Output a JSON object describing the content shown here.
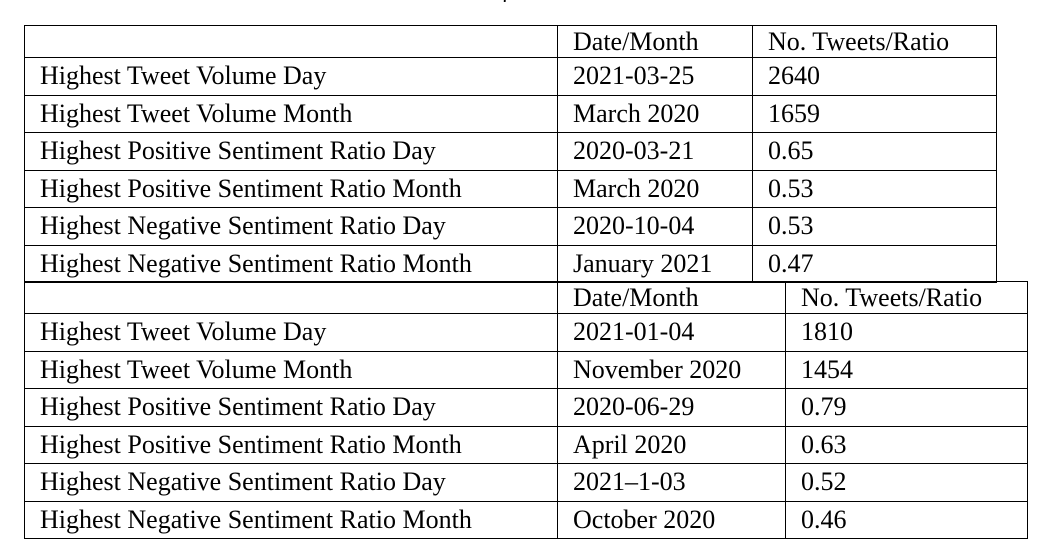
{
  "caption_fragment": ")",
  "tables": [
    {
      "headers": [
        "",
        "Date/Month",
        "No. Tweets/Ratio"
      ],
      "rows": [
        [
          "Highest Tweet Volume Day",
          "2021-03-25",
          "2640"
        ],
        [
          "Highest Tweet Volume Month",
          "March 2020",
          "1659"
        ],
        [
          "Highest Positive Sentiment Ratio Day",
          "2020-03-21",
          "0.65"
        ],
        [
          "Highest Positive Sentiment Ratio Month",
          "March 2020",
          "0.53"
        ],
        [
          "Highest Negative Sentiment Ratio Day",
          "2020-10-04",
          "0.53"
        ],
        [
          "Highest Negative Sentiment Ratio Month",
          "January 2021",
          "0.47"
        ]
      ]
    },
    {
      "headers": [
        "",
        "Date/Month",
        "No. Tweets/Ratio"
      ],
      "rows": [
        [
          "Highest Tweet Volume Day",
          "2021-01-04",
          "1810"
        ],
        [
          "Highest Tweet Volume Month",
          "November 2020",
          "1454"
        ],
        [
          "Highest Positive Sentiment Ratio Day",
          "2020-06-29",
          "0.79"
        ],
        [
          "Highest Positive Sentiment Ratio Month",
          "April 2020",
          "0.63"
        ],
        [
          "Highest Negative Sentiment Ratio Day",
          "2021–1-03",
          "0.52"
        ],
        [
          "Highest Negative Sentiment Ratio Month",
          "October 2020",
          "0.46"
        ]
      ]
    }
  ]
}
